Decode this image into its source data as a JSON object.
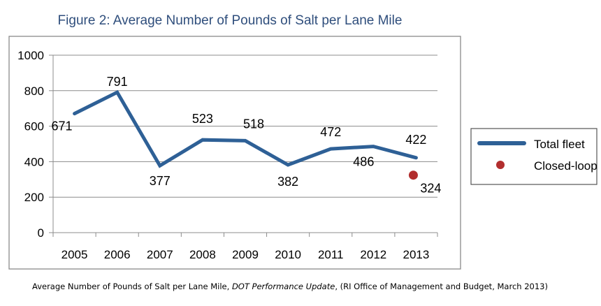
{
  "chart_data": {
    "type": "line",
    "title_prefix": "Figure ",
    "title_number": "2",
    "title_rest": ": Average Number of Pounds of Salt per Lane Mile",
    "title": "Figure 2: Average Number of Pounds of Salt per Lane Mile",
    "categories": [
      "2005",
      "2006",
      "2007",
      "2008",
      "2009",
      "2010",
      "2011",
      "2012",
      "2013"
    ],
    "series": [
      {
        "name": "Total fleet",
        "color": "#2e6096",
        "values": [
          671,
          791,
          377,
          523,
          518,
          382,
          472,
          486,
          422
        ],
        "labels": [
          "671",
          "791",
          "377",
          "523",
          "518",
          "382",
          "472",
          "486",
          "422"
        ]
      },
      {
        "name": "Closed-loop",
        "color": "#b22e2e",
        "points": [
          {
            "category": "2013",
            "value": 324,
            "label": "324"
          }
        ]
      }
    ],
    "yticks": [
      0,
      200,
      400,
      600,
      800,
      1000
    ],
    "ylim": [
      0,
      1000
    ],
    "grid": true,
    "legend_position": "right",
    "xlabel": "",
    "ylabel": ""
  },
  "caption": {
    "before": "Average Number of Pounds of Salt per Lane Mile, ",
    "source_italic": "DOT Performance Update",
    "after": ", (RI Office of Management and Budget, March 2013)"
  }
}
